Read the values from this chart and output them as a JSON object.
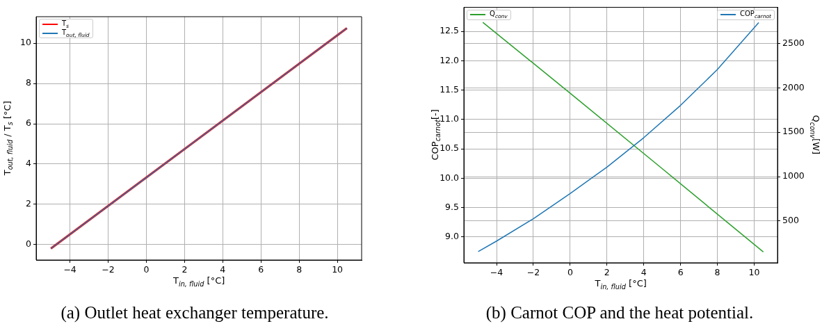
{
  "chart_data": [
    {
      "type": "line",
      "xlabel": "T$_{in, fluid}$ [°C]",
      "ylabel": "T$_{out, fluid}$ / T$_{s}$ [°C]",
      "series": [
        {
          "name": "T$_{s}$",
          "color": "#ff0000",
          "x": [
            -5,
            0,
            10.5
          ],
          "values": [
            -0.2,
            3.33,
            10.75
          ]
        },
        {
          "name": "T$_{out, fluid}$",
          "color": "#1f77b4",
          "x": [
            -5,
            0,
            10.5
          ],
          "values": [
            -0.2,
            3.33,
            10.75
          ]
        }
      ],
      "xlim": [
        -5.77,
        11.27
      ],
      "xticks": [
        -4,
        -2,
        0,
        2,
        4,
        6,
        8,
        10
      ],
      "ylim": [
        -0.77,
        11.32
      ],
      "yticks": [
        0,
        2,
        4,
        6,
        8,
        10
      ],
      "grid": true,
      "legend": "top left",
      "marker": "none",
      "line_style": "solid",
      "annotations": [
        "(a) Outlet heat exchanger temperature."
      ]
    },
    {
      "type": "line",
      "xlabel": "T$_{in, fluid}$ [°C]",
      "ylabel": "COP$_{carnot}$[-]",
      "y2label": "Q$_{conv}$[W]",
      "series": [
        {
          "name": "Q$_{conv}$",
          "color": "#2ca02c",
          "axis": "y2",
          "x": [
            -4.75,
            0,
            5,
            10.5
          ],
          "values": [
            2740,
            1940,
            1090,
            150
          ]
        },
        {
          "name": "COP$_{carnot}$",
          "color": "#1f77b4",
          "axis": "y",
          "x": [
            -5,
            -4,
            -2,
            0,
            2,
            4,
            6,
            8,
            10,
            10.25
          ],
          "values": [
            8.75,
            8.93,
            9.31,
            9.74,
            10.19,
            10.69,
            11.24,
            11.85,
            12.56,
            12.65
          ]
        }
      ],
      "xlim": [
        -5.78,
        11.27
      ],
      "xticks": [
        -4,
        -2,
        0,
        2,
        4,
        6,
        8,
        10
      ],
      "ylim": [
        8.56,
        12.91
      ],
      "yticks": [
        {
          "value": 9,
          "label": "9.0"
        },
        9.5,
        {
          "value": 10,
          "label": "10.0"
        },
        10.5,
        {
          "value": 11,
          "label": "11.0"
        },
        11.5,
        {
          "value": 12,
          "label": "12.0"
        },
        12.5
      ],
      "y2lim": [
        28,
        2909
      ],
      "y2ticks": [
        500,
        1000,
        1500,
        2000,
        2500
      ],
      "grid": true,
      "legend": "top",
      "marker": "none",
      "line_style": "solid",
      "annotations": [
        "(b) Carnot COP and the heat potential."
      ]
    }
  ]
}
